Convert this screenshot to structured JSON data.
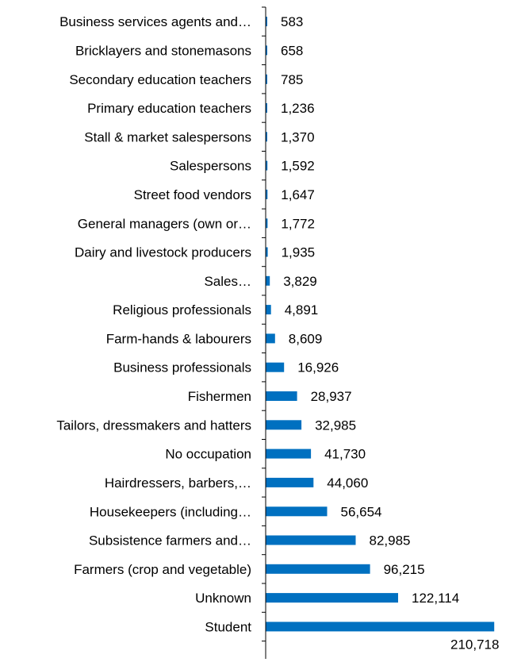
{
  "chart_data": {
    "type": "bar",
    "orientation": "horizontal",
    "categories": [
      "Business services agents and…",
      "Bricklayers and stonemasons",
      "Secondary education teachers",
      "Primary education teachers",
      "Stall & market salespersons",
      "Salespersons",
      "Street food vendors",
      "General managers (own or…",
      "Dairy and livestock producers",
      "Sales…",
      "Religious professionals",
      "Farm-hands & labourers",
      "Business professionals",
      "Fishermen",
      "Tailors, dressmakers and hatters",
      "No occupation",
      "Hairdressers, barbers,…",
      "Housekeepers (including…",
      "Subsistence farmers and…",
      "Farmers (crop and vegetable)",
      "Unknown",
      "Student"
    ],
    "values": [
      583,
      658,
      785,
      1236,
      1370,
      1592,
      1647,
      1772,
      1935,
      3829,
      4891,
      8609,
      16926,
      28937,
      32985,
      41730,
      44060,
      56654,
      82985,
      96215,
      122114,
      210718
    ],
    "value_labels": [
      "583",
      "658",
      "785",
      "1,236",
      "1,370",
      "1,592",
      "1,647",
      "1,772",
      "1,935",
      "3,829",
      "4,891",
      "8,609",
      "16,926",
      "28,937",
      "32,985",
      "41,730",
      "44,060",
      "56,654",
      "82,985",
      "96,215",
      "122,114",
      "210,718"
    ],
    "xlim": [
      0,
      212000
    ],
    "bar_color": "#0070c0",
    "axis_color": "#000000",
    "grid": false,
    "legend": "none"
  }
}
